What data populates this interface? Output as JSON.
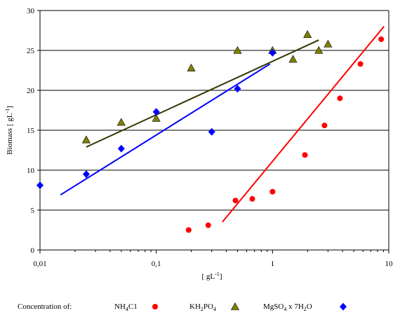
{
  "chart_data": {
    "type": "scatter",
    "xscale": "log",
    "xlim": [
      0.01,
      10
    ],
    "ylim": [
      0,
      30
    ],
    "xticks": [
      "0,01",
      "0,1",
      "1",
      "10"
    ],
    "yticks": [
      "0",
      "5",
      "10",
      "15",
      "20",
      "25",
      "30"
    ],
    "xlabel_parts": [
      "[ gL",
      "-1",
      "]"
    ],
    "ylabel_parts": [
      "Biomass [ gL",
      "-1",
      "]"
    ],
    "grid": "horizontal",
    "legend_position": "bottom",
    "legend_title": "Concentration of:",
    "series": [
      {
        "name_parts": [
          [
            "NH",
            false
          ],
          [
            "4",
            true
          ],
          [
            "C1",
            false
          ]
        ],
        "marker": "circle",
        "color": "#ff0000",
        "x": [
          0.19,
          0.28,
          0.48,
          0.67,
          1.0,
          1.9,
          2.8,
          3.8,
          5.7,
          8.6
        ],
        "y": [
          2.5,
          3.1,
          6.2,
          6.4,
          7.3,
          11.9,
          15.6,
          19.0,
          23.3,
          26.4
        ],
        "trend": {
          "x": [
            0.37,
            9.1
          ],
          "y": [
            3.5,
            28.0
          ]
        }
      },
      {
        "name_parts": [
          [
            "KH",
            false
          ],
          [
            "2",
            true
          ],
          [
            "PO",
            false
          ],
          [
            "4",
            true
          ]
        ],
        "marker": "triangle",
        "color": "#808000",
        "x": [
          0.025,
          0.05,
          0.1,
          0.2,
          0.5,
          1.0,
          1.5,
          2.0,
          2.5,
          3.0
        ],
        "y": [
          13.8,
          16.0,
          16.5,
          22.8,
          25.0,
          25.0,
          23.9,
          27.0,
          25.0,
          25.8
        ],
        "trend": {
          "x": [
            0.025,
            2.5
          ],
          "y": [
            12.9,
            26.3
          ]
        }
      },
      {
        "name_parts": [
          [
            "MgSO",
            false
          ],
          [
            "4",
            true
          ],
          [
            " x 7H",
            false
          ],
          [
            "2",
            true
          ],
          [
            "O",
            false
          ]
        ],
        "marker": "diamond",
        "color": "#0000ff",
        "x": [
          0.01,
          0.025,
          0.05,
          0.1,
          0.3,
          0.5,
          1.0
        ],
        "y": [
          8.1,
          9.5,
          12.7,
          17.3,
          14.8,
          20.2,
          24.7
        ],
        "trend": {
          "x": [
            0.015,
            0.95
          ],
          "y": [
            6.9,
            23.3
          ]
        }
      }
    ]
  }
}
